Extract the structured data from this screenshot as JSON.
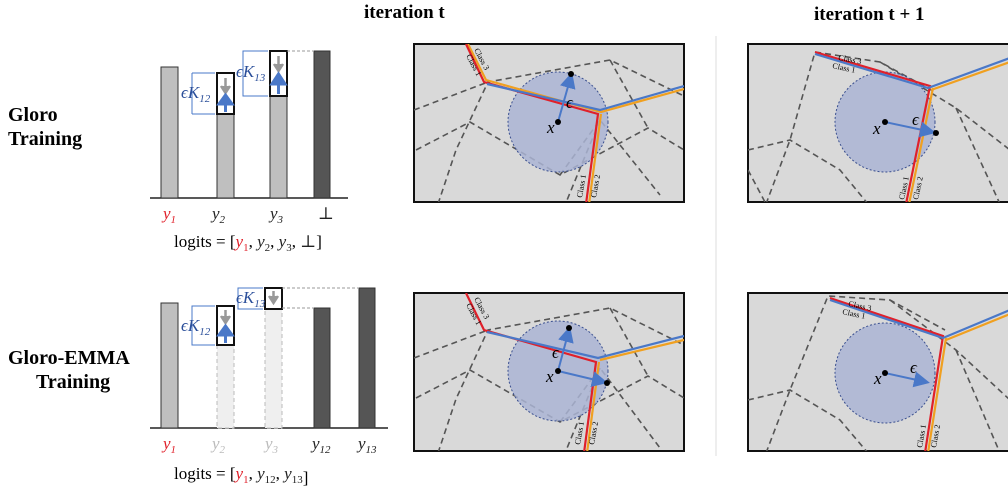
{
  "headers": {
    "iter_t": "iteration t",
    "iter_t1": "iteration t + 1"
  },
  "rows": {
    "gloro": {
      "line1": "Gloro",
      "line2": "Training"
    },
    "emma": {
      "line1": "Gloro-EMMA",
      "line2": "Training"
    }
  },
  "gloro_bars": {
    "labels": [
      "y",
      "y",
      "y",
      "⊥"
    ],
    "subscripts": [
      "1",
      "2",
      "3",
      ""
    ],
    "label_colors": [
      "#e0202a",
      "#222222",
      "#222222",
      "#222222"
    ],
    "eps_k12": "ϵK",
    "eps_k12_sub": "12",
    "eps_k13": "ϵK",
    "eps_k13_sub": "13",
    "logits_prefix": "logits = [",
    "logits_items": [
      {
        "t": "y",
        "s": "1",
        "c": "#e0202a"
      },
      {
        "t": "y",
        "s": "2",
        "c": "#222222"
      },
      {
        "t": "y",
        "s": "3",
        "c": "#222222"
      },
      {
        "t": "⊥",
        "s": "",
        "c": "#222222"
      }
    ],
    "logits_suffix": "]"
  },
  "emma_bars": {
    "labels": [
      "y",
      "y",
      "y",
      "y",
      "y"
    ],
    "subscripts": [
      "1",
      "2",
      "3",
      "12",
      "13"
    ],
    "label_colors": [
      "#e0202a",
      "#bbbbbb",
      "#bbbbbb",
      "#222222",
      "#222222"
    ],
    "eps_k12": "ϵK",
    "eps_k12_sub": "12",
    "eps_k13": "ϵK",
    "eps_k13_sub": "13",
    "logits_prefix": "logits = [",
    "logits_items": [
      {
        "t": "y",
        "s": "1",
        "c": "#e0202a"
      },
      {
        "t": "y",
        "s": "12",
        "c": "#222222"
      },
      {
        "t": "y",
        "s": "13",
        "c": "#222222"
      }
    ],
    "logits_suffix": "]"
  },
  "panels": {
    "class1": "Class 1",
    "class2": "Class 2",
    "class3": "Class 3",
    "eps": "ϵ",
    "x": "x"
  },
  "colors": {
    "bar_light": "#bfbfbf",
    "bar_dark": "#555555",
    "panel_bg": "#d9d9d9",
    "red": "#e0202a",
    "orange": "#f0a020",
    "blue": "#4a78c8",
    "circle": "#aab4d4"
  }
}
